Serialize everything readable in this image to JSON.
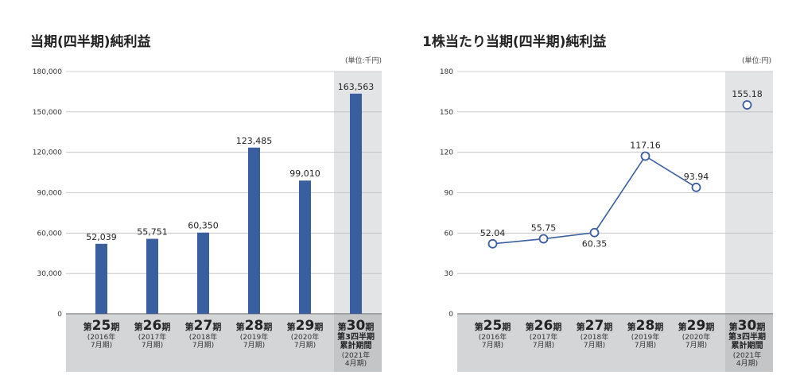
{
  "chart_data": [
    {
      "type": "bar",
      "title": "当期(四半期)純利益",
      "unit_note": "(単位:千円)",
      "ylim": [
        0,
        180000
      ],
      "yticks": [
        "0",
        "30,000",
        "60,000",
        "90,000",
        "120,000",
        "150,000",
        "180,000"
      ],
      "ytick_values": [
        0,
        30000,
        60000,
        90000,
        120000,
        150000,
        180000
      ],
      "grid": true,
      "color": "#3a5f9e",
      "highlight_color": "#e3e4e6",
      "category_band_color": "#d4d5d7",
      "categories": [
        {
          "pre": "第",
          "num": "25",
          "post": "期",
          "lines": [
            "(2016年",
            "7月期)"
          ]
        },
        {
          "pre": "第",
          "num": "26",
          "post": "期",
          "lines": [
            "(2017年",
            "7月期)"
          ]
        },
        {
          "pre": "第",
          "num": "27",
          "post": "期",
          "lines": [
            "(2018年",
            "7月期)"
          ]
        },
        {
          "pre": "第",
          "num": "28",
          "post": "期",
          "lines": [
            "(2019年",
            "7月期)"
          ]
        },
        {
          "pre": "第",
          "num": "29",
          "post": "期",
          "lines": [
            "(2020年",
            "7月期)"
          ]
        },
        {
          "pre": "第",
          "num": "30",
          "post": "期",
          "bold_lines": [
            "第3四半期",
            "累計期間"
          ],
          "lines": [
            "(2021年",
            "4月期)"
          ]
        }
      ],
      "values": [
        52039,
        55751,
        60350,
        123485,
        99010,
        163563
      ],
      "value_labels": [
        "52,039",
        "55,751",
        "60,350",
        "123,485",
        "99,010",
        "163,563"
      ]
    },
    {
      "type": "line",
      "title": "1株当たり当期(四半期)純利益",
      "unit_note": "(単位:円)",
      "ylim": [
        0,
        180
      ],
      "yticks": [
        "0",
        "30",
        "60",
        "90",
        "120",
        "150",
        "180"
      ],
      "ytick_values": [
        0,
        30,
        60,
        90,
        120,
        150,
        180
      ],
      "grid": true,
      "color": "#3a5f9e",
      "highlight_color": "#e3e4e6",
      "category_band_color": "#d4d5d7",
      "categories": [
        {
          "pre": "第",
          "num": "25",
          "post": "期",
          "lines": [
            "(2016年",
            "7月期)"
          ]
        },
        {
          "pre": "第",
          "num": "26",
          "post": "期",
          "lines": [
            "(2017年",
            "7月期)"
          ]
        },
        {
          "pre": "第",
          "num": "27",
          "post": "期",
          "lines": [
            "(2018年",
            "7月期)"
          ]
        },
        {
          "pre": "第",
          "num": "28",
          "post": "期",
          "lines": [
            "(2019年",
            "7月期)"
          ]
        },
        {
          "pre": "第",
          "num": "29",
          "post": "期",
          "lines": [
            "(2020年",
            "7月期)"
          ]
        },
        {
          "pre": "第",
          "num": "30",
          "post": "期",
          "bold_lines": [
            "第3四半期",
            "累計期間"
          ],
          "lines": [
            "(2021年",
            "4月期)"
          ]
        }
      ],
      "values": [
        52.04,
        55.75,
        60.35,
        117.16,
        93.94,
        155.18
      ],
      "value_labels": [
        "52.04",
        "55.75",
        "60.35",
        "117.16",
        "93.94",
        "155.18"
      ],
      "label_below": [
        false,
        false,
        true,
        false,
        false,
        false
      ],
      "connected_points": 5
    }
  ]
}
